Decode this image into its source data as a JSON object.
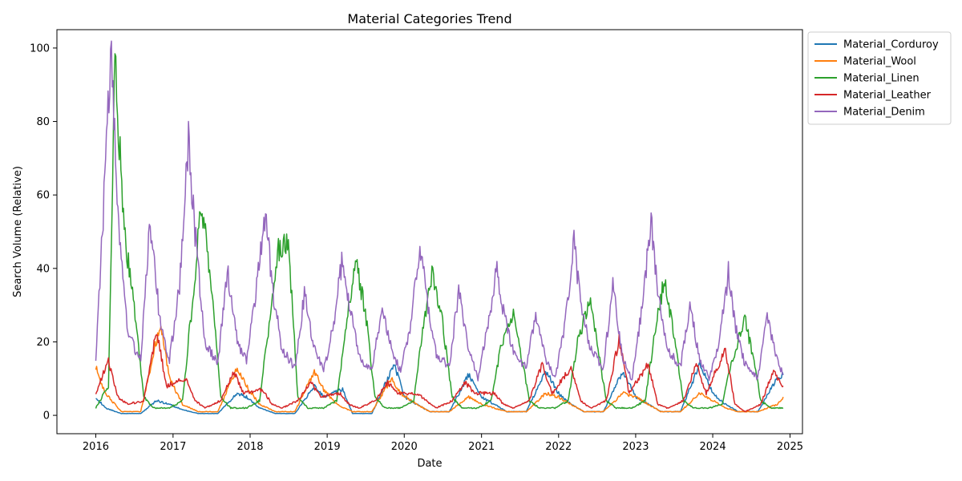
{
  "chart_data": {
    "type": "line",
    "title": "Material Categories Trend",
    "xlabel": "Date",
    "ylabel": "Search Volume (Relative)",
    "x_range": [
      "2015-07-01",
      "2025-03-01"
    ],
    "ylim": [
      -5,
      105
    ],
    "x_ticks": [
      "2016",
      "2017",
      "2018",
      "2019",
      "2020",
      "2021",
      "2022",
      "2023",
      "2024",
      "2025"
    ],
    "y_ticks": [
      0,
      20,
      40,
      60,
      80,
      100
    ],
    "grid": false,
    "legend_position": "outside-top-right",
    "series": [
      {
        "name": "Material_Corduroy",
        "color": "#1f77b4",
        "points": [
          [
            "2016-01-01",
            5
          ],
          [
            "2016-02-15",
            2
          ],
          [
            "2016-05-01",
            0.5
          ],
          [
            "2016-08-01",
            0.5
          ],
          [
            "2016-10-15",
            4
          ],
          [
            "2016-12-15",
            3
          ],
          [
            "2017-02-15",
            1.5
          ],
          [
            "2017-05-01",
            0.5
          ],
          [
            "2017-08-01",
            0.5
          ],
          [
            "2017-11-01",
            6
          ],
          [
            "2017-12-15",
            5
          ],
          [
            "2018-02-15",
            2
          ],
          [
            "2018-05-01",
            0.5
          ],
          [
            "2018-08-01",
            0.5
          ],
          [
            "2018-11-01",
            8
          ],
          [
            "2018-12-15",
            5
          ],
          [
            "2019-03-15",
            7
          ],
          [
            "2019-05-01",
            0.5
          ],
          [
            "2019-08-01",
            0.5
          ],
          [
            "2019-11-15",
            14
          ],
          [
            "2020-01-01",
            5
          ],
          [
            "2020-03-01",
            3
          ],
          [
            "2020-05-01",
            1
          ],
          [
            "2020-08-01",
            1
          ],
          [
            "2020-11-01",
            11
          ],
          [
            "2021-01-01",
            5
          ],
          [
            "2021-03-01",
            3
          ],
          [
            "2021-05-01",
            1
          ],
          [
            "2021-08-01",
            1
          ],
          [
            "2021-11-01",
            12
          ],
          [
            "2022-01-01",
            6
          ],
          [
            "2022-03-01",
            3
          ],
          [
            "2022-05-01",
            1
          ],
          [
            "2022-08-01",
            1
          ],
          [
            "2022-11-01",
            12
          ],
          [
            "2023-01-01",
            5
          ],
          [
            "2023-03-01",
            3
          ],
          [
            "2023-05-01",
            1
          ],
          [
            "2023-08-01",
            1
          ],
          [
            "2023-11-01",
            14
          ],
          [
            "2024-01-01",
            6
          ],
          [
            "2024-03-01",
            3
          ],
          [
            "2024-05-01",
            1
          ],
          [
            "2024-08-01",
            1
          ],
          [
            "2024-11-01",
            10
          ],
          [
            "2024-11-30",
            11
          ]
        ]
      },
      {
        "name": "Material_Wool",
        "color": "#ff7f0e",
        "points": [
          [
            "2016-01-01",
            13
          ],
          [
            "2016-02-15",
            6
          ],
          [
            "2016-05-01",
            1
          ],
          [
            "2016-08-01",
            1
          ],
          [
            "2016-11-01",
            25
          ],
          [
            "2016-12-15",
            10
          ],
          [
            "2017-02-15",
            3
          ],
          [
            "2017-05-01",
            1
          ],
          [
            "2017-08-01",
            1
          ],
          [
            "2017-11-01",
            13
          ],
          [
            "2017-12-15",
            8
          ],
          [
            "2018-02-15",
            3
          ],
          [
            "2018-05-01",
            1
          ],
          [
            "2018-08-01",
            1
          ],
          [
            "2018-11-01",
            12
          ],
          [
            "2018-12-15",
            7
          ],
          [
            "2019-02-15",
            3
          ],
          [
            "2019-05-01",
            1
          ],
          [
            "2019-08-01",
            1
          ],
          [
            "2019-11-01",
            10
          ],
          [
            "2019-12-15",
            6
          ],
          [
            "2020-03-01",
            3
          ],
          [
            "2020-05-01",
            1
          ],
          [
            "2020-08-01",
            1
          ],
          [
            "2020-11-01",
            5
          ],
          [
            "2021-01-01",
            3
          ],
          [
            "2021-03-01",
            2
          ],
          [
            "2021-05-01",
            1
          ],
          [
            "2021-08-01",
            1
          ],
          [
            "2021-11-01",
            6
          ],
          [
            "2022-01-01",
            5
          ],
          [
            "2022-03-01",
            3
          ],
          [
            "2022-05-01",
            1
          ],
          [
            "2022-08-01",
            1
          ],
          [
            "2022-11-01",
            6
          ],
          [
            "2023-01-01",
            5
          ],
          [
            "2023-03-01",
            3
          ],
          [
            "2023-05-01",
            1
          ],
          [
            "2023-08-01",
            1
          ],
          [
            "2023-11-01",
            6
          ],
          [
            "2024-01-01",
            4
          ],
          [
            "2024-03-01",
            2
          ],
          [
            "2024-05-01",
            1
          ],
          [
            "2024-08-01",
            1
          ],
          [
            "2024-11-01",
            3
          ],
          [
            "2024-11-30",
            5
          ]
        ]
      },
      {
        "name": "Material_Linen",
        "color": "#2ca02c",
        "points": [
          [
            "2016-01-01",
            2
          ],
          [
            "2016-03-01",
            8
          ],
          [
            "2016-04-01",
            96
          ],
          [
            "2016-05-15",
            50
          ],
          [
            "2016-07-01",
            30
          ],
          [
            "2016-08-15",
            5
          ],
          [
            "2016-10-01",
            2
          ],
          [
            "2016-12-15",
            2
          ],
          [
            "2017-02-15",
            4
          ],
          [
            "2017-04-01",
            30
          ],
          [
            "2017-05-15",
            58
          ],
          [
            "2017-07-01",
            35
          ],
          [
            "2017-08-15",
            5
          ],
          [
            "2017-10-01",
            2
          ],
          [
            "2017-12-15",
            2
          ],
          [
            "2018-02-15",
            4
          ],
          [
            "2018-04-01",
            25
          ],
          [
            "2018-05-15",
            45
          ],
          [
            "2018-07-01",
            48
          ],
          [
            "2018-08-15",
            5
          ],
          [
            "2018-10-01",
            2
          ],
          [
            "2018-12-15",
            2
          ],
          [
            "2019-02-15",
            4
          ],
          [
            "2019-04-01",
            25
          ],
          [
            "2019-05-15",
            42
          ],
          [
            "2019-07-01",
            28
          ],
          [
            "2019-08-15",
            5
          ],
          [
            "2019-10-01",
            2
          ],
          [
            "2019-12-15",
            2
          ],
          [
            "2020-02-15",
            4
          ],
          [
            "2020-04-01",
            25
          ],
          [
            "2020-05-15",
            39
          ],
          [
            "2020-07-01",
            25
          ],
          [
            "2020-08-15",
            5
          ],
          [
            "2020-10-01",
            2
          ],
          [
            "2020-12-15",
            2
          ],
          [
            "2021-02-15",
            4
          ],
          [
            "2021-04-01",
            18
          ],
          [
            "2021-06-01",
            27
          ],
          [
            "2021-07-15",
            14
          ],
          [
            "2021-08-15",
            4
          ],
          [
            "2021-10-01",
            2
          ],
          [
            "2021-12-15",
            2
          ],
          [
            "2022-02-15",
            4
          ],
          [
            "2022-04-01",
            20
          ],
          [
            "2022-06-01",
            32
          ],
          [
            "2022-07-15",
            15
          ],
          [
            "2022-08-15",
            4
          ],
          [
            "2022-10-01",
            2
          ],
          [
            "2022-12-15",
            2
          ],
          [
            "2023-02-15",
            4
          ],
          [
            "2023-04-01",
            22
          ],
          [
            "2023-05-15",
            37
          ],
          [
            "2023-07-01",
            22
          ],
          [
            "2023-08-15",
            4
          ],
          [
            "2023-10-01",
            2
          ],
          [
            "2023-12-15",
            2
          ],
          [
            "2024-02-15",
            3
          ],
          [
            "2024-04-01",
            15
          ],
          [
            "2024-06-01",
            26
          ],
          [
            "2024-07-15",
            15
          ],
          [
            "2024-08-15",
            4
          ],
          [
            "2024-10-01",
            2
          ],
          [
            "2024-11-30",
            2
          ]
        ]
      },
      {
        "name": "Material_Leather",
        "color": "#d62728",
        "points": [
          [
            "2016-01-01",
            6
          ],
          [
            "2016-03-01",
            15
          ],
          [
            "2016-04-15",
            5
          ],
          [
            "2016-06-01",
            3
          ],
          [
            "2016-08-15",
            4
          ],
          [
            "2016-10-15",
            23
          ],
          [
            "2016-12-01",
            8
          ],
          [
            "2017-03-01",
            10
          ],
          [
            "2017-04-15",
            4
          ],
          [
            "2017-06-01",
            2
          ],
          [
            "2017-08-15",
            4
          ],
          [
            "2017-10-15",
            12
          ],
          [
            "2017-12-01",
            6
          ],
          [
            "2018-03-01",
            7
          ],
          [
            "2018-04-15",
            3
          ],
          [
            "2018-06-01",
            2
          ],
          [
            "2018-08-15",
            4
          ],
          [
            "2018-10-15",
            9
          ],
          [
            "2018-12-01",
            5
          ],
          [
            "2019-03-01",
            6
          ],
          [
            "2019-04-15",
            3
          ],
          [
            "2019-06-01",
            2
          ],
          [
            "2019-08-15",
            4
          ],
          [
            "2019-10-15",
            9
          ],
          [
            "2019-12-01",
            6
          ],
          [
            "2020-03-01",
            6
          ],
          [
            "2020-04-15",
            4
          ],
          [
            "2020-06-01",
            2
          ],
          [
            "2020-08-15",
            4
          ],
          [
            "2020-10-15",
            9
          ],
          [
            "2020-12-01",
            6
          ],
          [
            "2021-03-01",
            6
          ],
          [
            "2021-04-15",
            3
          ],
          [
            "2021-06-01",
            2
          ],
          [
            "2021-08-15",
            4
          ],
          [
            "2021-10-15",
            14
          ],
          [
            "2021-12-01",
            6
          ],
          [
            "2022-03-01",
            13
          ],
          [
            "2022-04-15",
            4
          ],
          [
            "2022-06-01",
            2
          ],
          [
            "2022-08-15",
            4
          ],
          [
            "2022-10-15",
            21
          ],
          [
            "2022-12-01",
            6
          ],
          [
            "2023-03-01",
            14
          ],
          [
            "2023-04-15",
            3
          ],
          [
            "2023-06-01",
            2
          ],
          [
            "2023-08-15",
            4
          ],
          [
            "2023-10-15",
            14
          ],
          [
            "2023-12-01",
            6
          ],
          [
            "2024-03-01",
            18
          ],
          [
            "2024-04-15",
            3
          ],
          [
            "2024-06-01",
            1
          ],
          [
            "2024-08-15",
            3
          ],
          [
            "2024-10-15",
            12
          ],
          [
            "2024-11-30",
            8
          ]
        ]
      },
      {
        "name": "Material_Denim",
        "color": "#9467bd",
        "points": [
          [
            "2016-01-01",
            15
          ],
          [
            "2016-02-01",
            50
          ],
          [
            "2016-03-15",
            100
          ],
          [
            "2016-04-15",
            55
          ],
          [
            "2016-06-01",
            22
          ],
          [
            "2016-08-01",
            15
          ],
          [
            "2016-09-15",
            53
          ],
          [
            "2016-11-01",
            25
          ],
          [
            "2016-12-15",
            15
          ],
          [
            "2017-02-01",
            35
          ],
          [
            "2017-03-15",
            75
          ],
          [
            "2017-04-15",
            50
          ],
          [
            "2017-06-01",
            20
          ],
          [
            "2017-08-01",
            14
          ],
          [
            "2017-09-15",
            40
          ],
          [
            "2017-11-01",
            20
          ],
          [
            "2017-12-15",
            15
          ],
          [
            "2018-02-01",
            35
          ],
          [
            "2018-03-15",
            56
          ],
          [
            "2018-04-15",
            35
          ],
          [
            "2018-06-01",
            18
          ],
          [
            "2018-08-01",
            13
          ],
          [
            "2018-09-15",
            33
          ],
          [
            "2018-11-01",
            18
          ],
          [
            "2018-12-15",
            12
          ],
          [
            "2019-02-01",
            25
          ],
          [
            "2019-03-15",
            43
          ],
          [
            "2019-04-15",
            30
          ],
          [
            "2019-06-01",
            16
          ],
          [
            "2019-08-01",
            12
          ],
          [
            "2019-09-15",
            29
          ],
          [
            "2019-11-01",
            18
          ],
          [
            "2019-12-15",
            12
          ],
          [
            "2020-02-01",
            25
          ],
          [
            "2020-03-15",
            47
          ],
          [
            "2020-04-15",
            32
          ],
          [
            "2020-06-01",
            17
          ],
          [
            "2020-08-01",
            13
          ],
          [
            "2020-09-15",
            34
          ],
          [
            "2020-11-01",
            18
          ],
          [
            "2020-12-15",
            10
          ],
          [
            "2021-02-01",
            25
          ],
          [
            "2021-03-15",
            40
          ],
          [
            "2021-04-15",
            28
          ],
          [
            "2021-06-01",
            17
          ],
          [
            "2021-08-01",
            13
          ],
          [
            "2021-09-15",
            28
          ],
          [
            "2021-11-01",
            15
          ],
          [
            "2021-12-15",
            10
          ],
          [
            "2022-02-01",
            25
          ],
          [
            "2022-03-15",
            47
          ],
          [
            "2022-04-15",
            30
          ],
          [
            "2022-06-01",
            18
          ],
          [
            "2022-08-01",
            13
          ],
          [
            "2022-09-15",
            35
          ],
          [
            "2022-11-01",
            15
          ],
          [
            "2022-12-15",
            10
          ],
          [
            "2023-02-01",
            30
          ],
          [
            "2023-03-15",
            52
          ],
          [
            "2023-04-15",
            35
          ],
          [
            "2023-06-01",
            18
          ],
          [
            "2023-08-01",
            13
          ],
          [
            "2023-09-15",
            30
          ],
          [
            "2023-11-01",
            15
          ],
          [
            "2023-12-15",
            10
          ],
          [
            "2024-02-01",
            20
          ],
          [
            "2024-03-15",
            39
          ],
          [
            "2024-04-15",
            25
          ],
          [
            "2024-06-01",
            14
          ],
          [
            "2024-08-01",
            10
          ],
          [
            "2024-09-15",
            27
          ],
          [
            "2024-11-01",
            15
          ],
          [
            "2024-11-30",
            11
          ]
        ]
      }
    ]
  }
}
